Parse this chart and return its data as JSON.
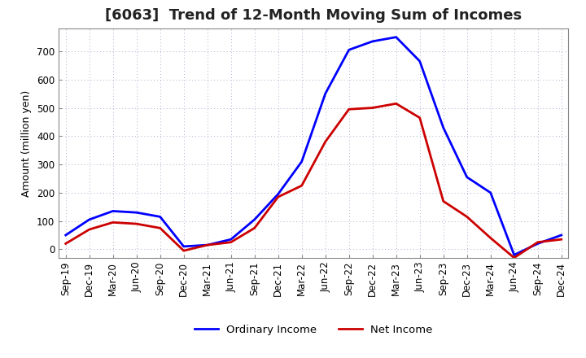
{
  "title": "[6063]  Trend of 12-Month Moving Sum of Incomes",
  "ylabel": "Amount (million yen)",
  "background_color": "#ffffff",
  "grid_color": "#aaaacc",
  "x_labels": [
    "Sep-19",
    "Dec-19",
    "Mar-20",
    "Jun-20",
    "Sep-20",
    "Dec-20",
    "Mar-21",
    "Jun-21",
    "Sep-21",
    "Dec-21",
    "Mar-22",
    "Jun-22",
    "Sep-22",
    "Dec-22",
    "Mar-23",
    "Jun-23",
    "Sep-23",
    "Dec-23",
    "Mar-24",
    "Jun-24",
    "Sep-24",
    "Dec-24"
  ],
  "ordinary_income": [
    50,
    105,
    135,
    130,
    115,
    10,
    15,
    35,
    105,
    195,
    310,
    550,
    705,
    735,
    750,
    665,
    430,
    255,
    200,
    -20,
    20,
    50
  ],
  "net_income": [
    20,
    70,
    95,
    90,
    75,
    -5,
    15,
    25,
    75,
    185,
    225,
    380,
    495,
    500,
    515,
    465,
    170,
    115,
    40,
    -30,
    25,
    35
  ],
  "ordinary_color": "#0000ff",
  "net_color": "#cc0000",
  "line_width": 2.0,
  "ylim": [
    -30,
    780
  ],
  "yticks": [
    0,
    100,
    200,
    300,
    400,
    500,
    600,
    700
  ],
  "title_fontsize": 13,
  "label_fontsize": 9,
  "tick_fontsize": 8.5
}
